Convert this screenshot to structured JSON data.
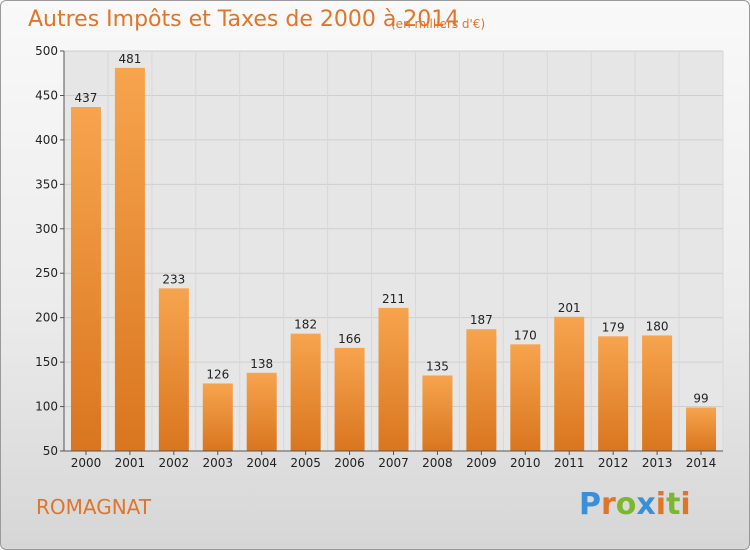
{
  "header": {
    "title": "Autres Impôts et Taxes de 2000 à 2014",
    "subtitle": "(en milliers d'€)"
  },
  "footer": {
    "city": "ROMAGNAT",
    "logo": "Proxiti",
    "logo_colors": [
      "#3a8fd9",
      "#e0752a",
      "#7cb82f",
      "#3a8fd9",
      "#e0752a",
      "#7cb82f",
      "#e0752a"
    ]
  },
  "colors": {
    "accent": "#e0752a",
    "bar_light": "#f7a44e",
    "bar_dark": "#d9761f"
  },
  "chart_data": {
    "type": "bar",
    "categories": [
      "2000",
      "2001",
      "2002",
      "2003",
      "2004",
      "2005",
      "2006",
      "2007",
      "2008",
      "2009",
      "2010",
      "2011",
      "2012",
      "2013",
      "2014"
    ],
    "values": [
      437,
      481,
      233,
      126,
      138,
      182,
      166,
      211,
      135,
      187,
      170,
      201,
      179,
      180,
      99
    ],
    "title": "Autres Impôts et Taxes de 2000 à 2014",
    "subtitle": "(en milliers d'€)",
    "ylim": [
      50,
      500
    ],
    "yticks": [
      50,
      100,
      150,
      200,
      250,
      300,
      350,
      400,
      450,
      500
    ],
    "grid": true,
    "data_labels": true
  }
}
